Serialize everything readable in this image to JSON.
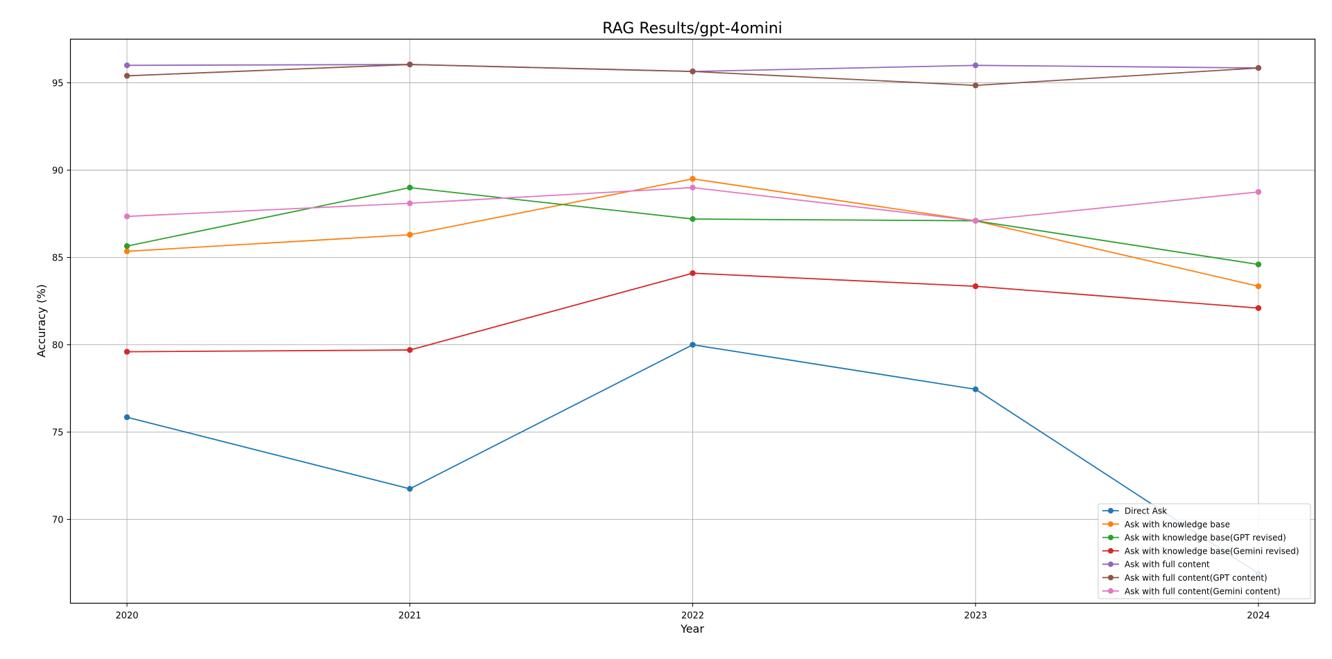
{
  "chart_data": {
    "type": "line",
    "title": "RAG Results/gpt-4omini",
    "xlabel": "Year",
    "ylabel": "Accuracy (%)",
    "x": [
      "2020",
      "2021",
      "2022",
      "2023",
      "2024"
    ],
    "xlim": [
      2019.8,
      2024.2
    ],
    "ylim": [
      65.2,
      97.5
    ],
    "yticks": [
      70,
      75,
      80,
      85,
      90,
      95
    ],
    "grid": true,
    "legend_position": "lower-right",
    "marker": "circle",
    "series": [
      {
        "name": "Direct Ask",
        "color": "#1f77b4",
        "values": [
          75.85,
          71.75,
          80.0,
          77.45,
          66.9
        ]
      },
      {
        "name": "Ask with knowledge base",
        "color": "#ff7f0e",
        "values": [
          85.35,
          86.3,
          89.5,
          87.1,
          83.35
        ]
      },
      {
        "name": "Ask with knowledge base(GPT revised)",
        "color": "#2ca02c",
        "values": [
          85.65,
          89.0,
          87.2,
          87.1,
          84.6
        ]
      },
      {
        "name": "Ask with knowledge base(Gemini revised)",
        "color": "#d62728",
        "values": [
          79.6,
          79.7,
          84.1,
          83.35,
          82.1
        ]
      },
      {
        "name": "Ask with full content",
        "color": "#9467bd",
        "values": [
          96.0,
          96.05,
          95.65,
          96.0,
          95.85
        ]
      },
      {
        "name": "Ask with full content(GPT content)",
        "color": "#8c564b",
        "values": [
          95.4,
          96.05,
          95.65,
          94.85,
          95.85
        ]
      },
      {
        "name": "Ask with full content(Gemini content)",
        "color": "#e377c2",
        "values": [
          87.35,
          88.1,
          89.0,
          87.1,
          88.75
        ]
      }
    ]
  }
}
